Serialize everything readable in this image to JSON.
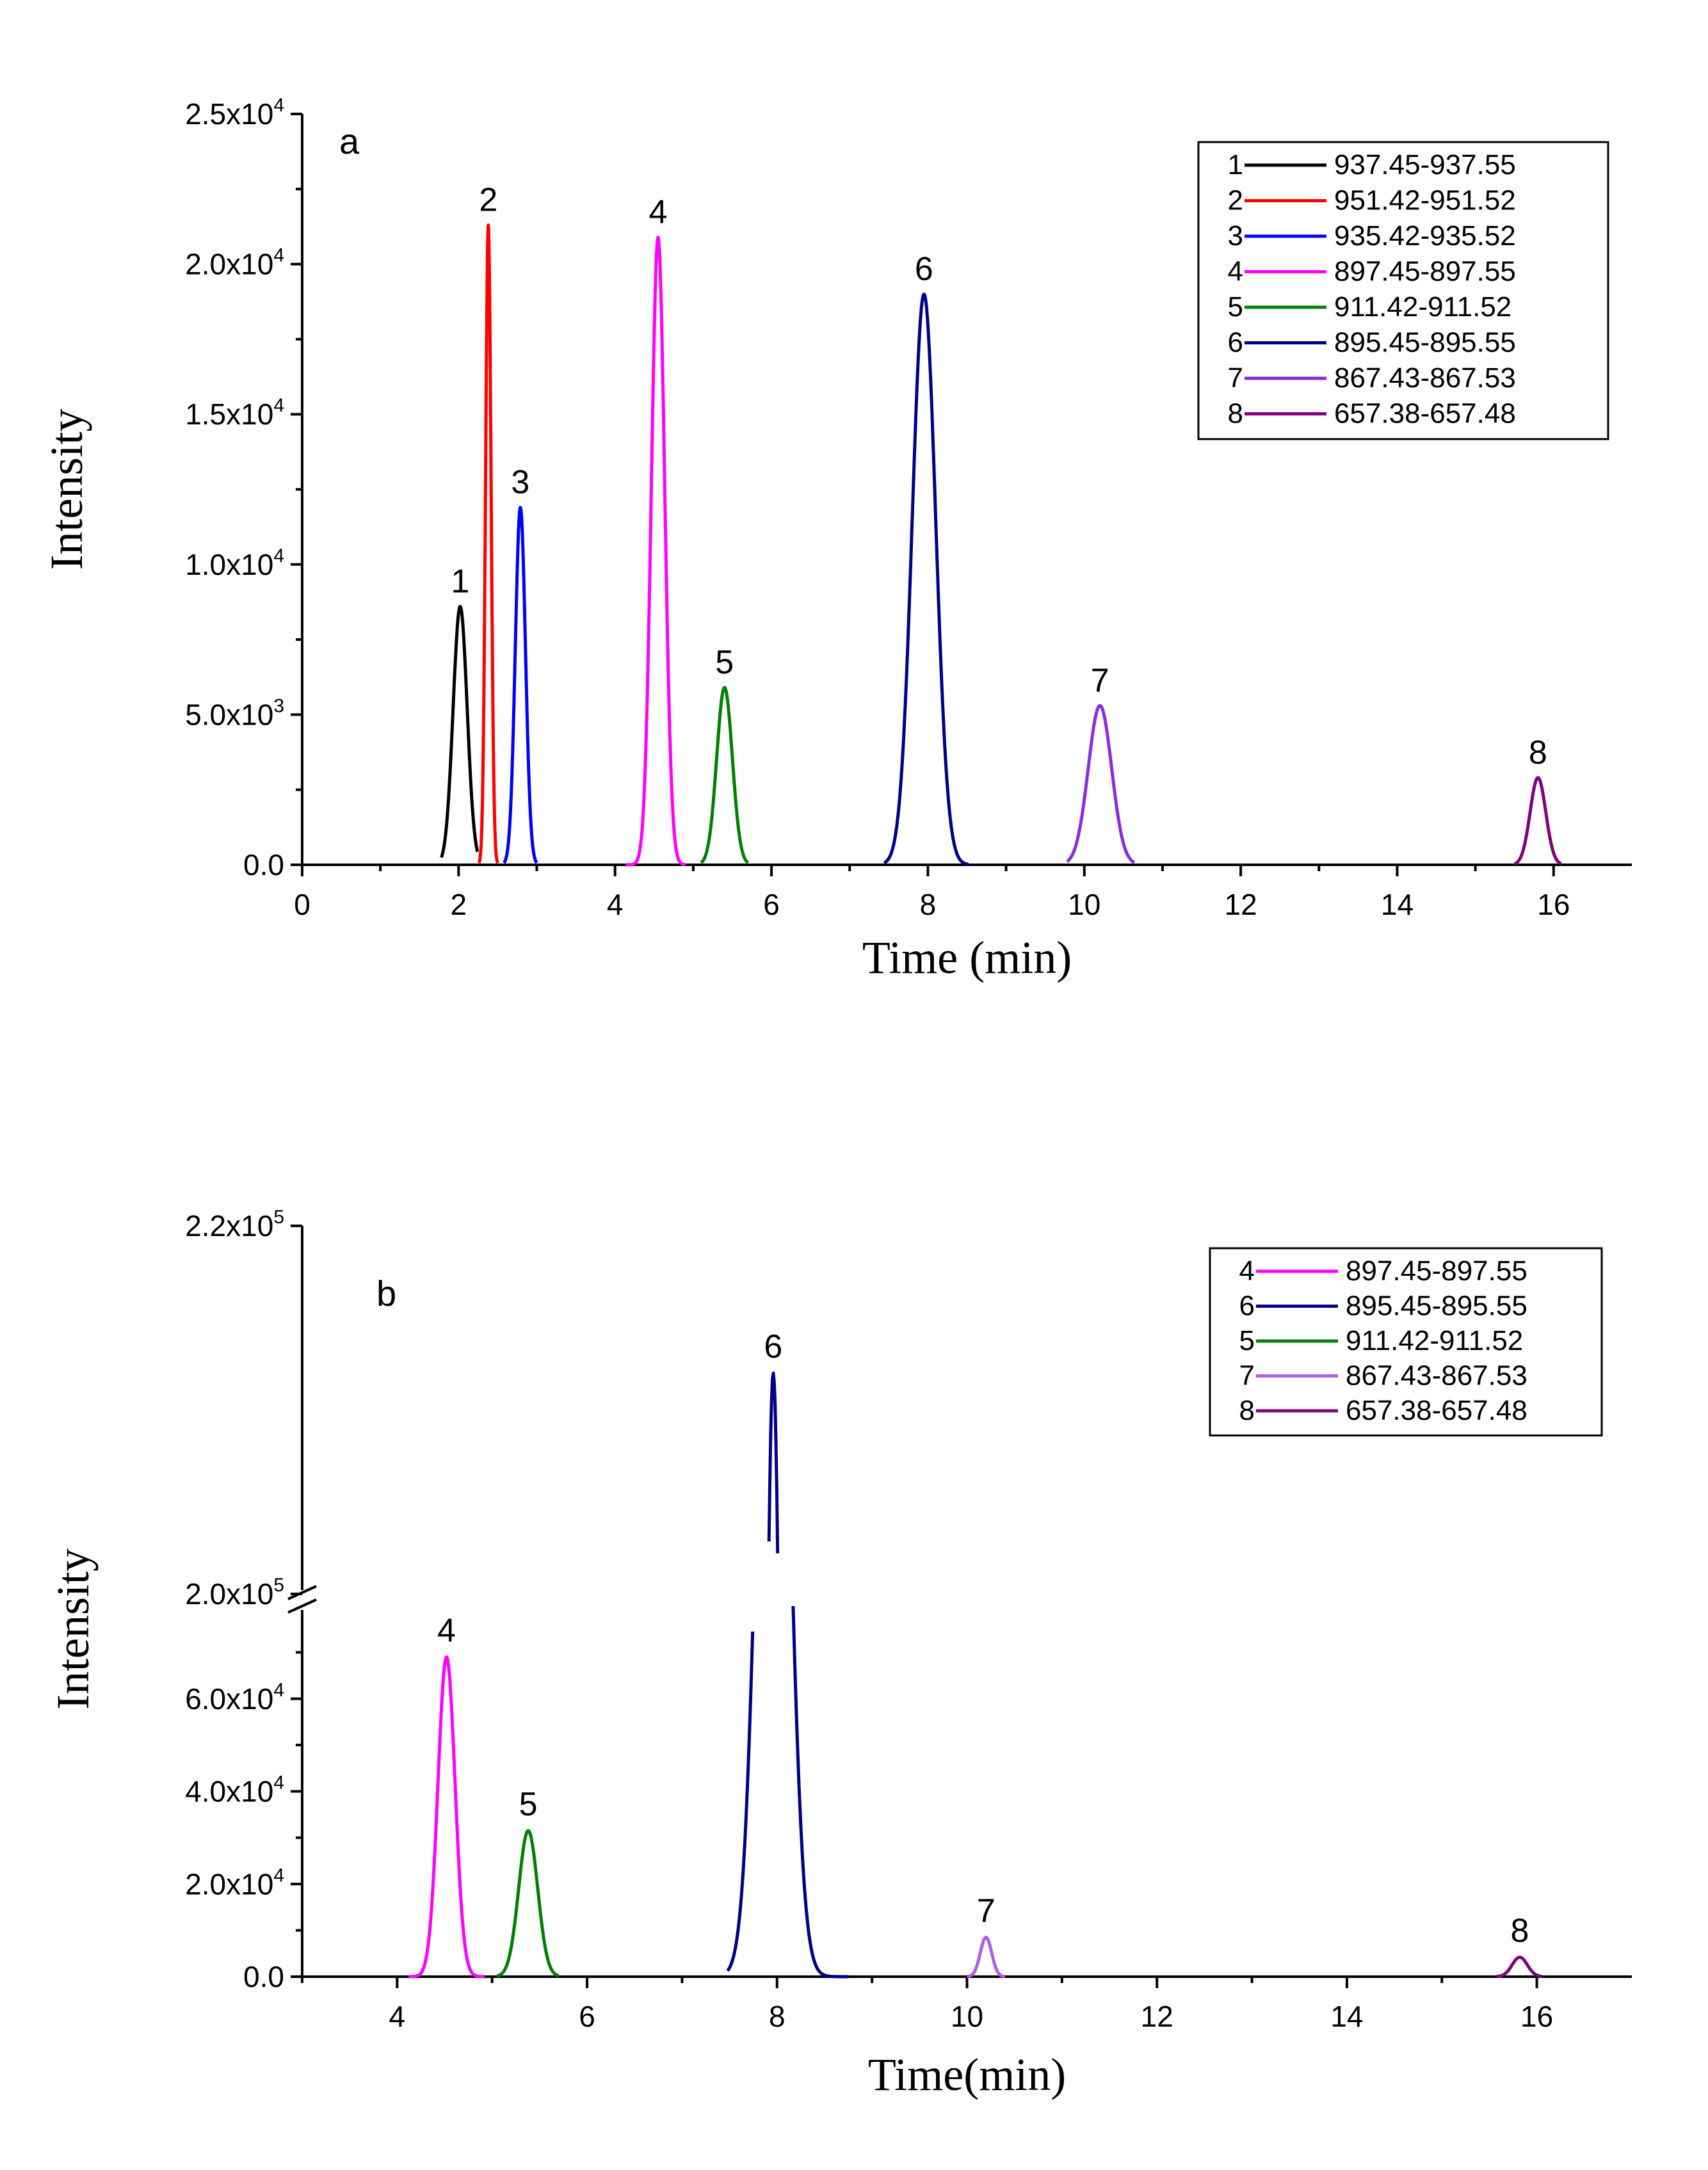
{
  "chart_data": [
    {
      "panel": "a",
      "type": "line",
      "xlabel": "Time (min)",
      "ylabel": "Intensity",
      "xlim": [
        0,
        17
      ],
      "ylim": [
        0,
        25000
      ],
      "x_ticks": [
        0,
        2,
        4,
        6,
        8,
        10,
        12,
        14,
        16
      ],
      "y_ticks": [
        {
          "value": 0,
          "label": "0.0"
        },
        {
          "value": 5000,
          "label": "5.0x10",
          "exp": "3"
        },
        {
          "value": 10000,
          "label": "1.0x10",
          "exp": "4"
        },
        {
          "value": 15000,
          "label": "1.5x10",
          "exp": "4"
        },
        {
          "value": 20000,
          "label": "2.0x10",
          "exp": "4"
        },
        {
          "value": 25000,
          "label": "2.5x10",
          "exp": "4"
        }
      ],
      "series": [
        {
          "id": "1",
          "name": "937.45-937.55",
          "color": "#000000",
          "peak_time": 2.02,
          "peak_height": 8600,
          "width": 0.09,
          "start": 1.78,
          "end": 2.24
        },
        {
          "id": "2",
          "name": "951.42-951.52",
          "color": "#ff0000",
          "peak_time": 2.38,
          "peak_height": 21300,
          "width": 0.035,
          "start": 2.26,
          "end": 2.5
        },
        {
          "id": "3",
          "name": "935.42-935.52",
          "color": "#0000ff",
          "peak_time": 2.79,
          "peak_height": 11900,
          "width": 0.065,
          "start": 2.58,
          "end": 3.0
        },
        {
          "id": "4",
          "name": "897.45-897.55",
          "color": "#ff00ff",
          "peak_time": 4.55,
          "peak_height": 20900,
          "width": 0.085,
          "start": 4.14,
          "end": 4.9
        },
        {
          "id": "5",
          "name": "911.42-911.52",
          "color": "#008000",
          "peak_time": 5.4,
          "peak_height": 5900,
          "width": 0.1,
          "start": 5.1,
          "end": 5.7
        },
        {
          "id": "6",
          "name": "895.45-895.55",
          "color": "#00008b",
          "peak_time": 7.95,
          "peak_height": 19000,
          "width": 0.15,
          "start": 7.44,
          "end": 8.52
        },
        {
          "id": "7",
          "name": "867.43-867.53",
          "color": "#8a2be2",
          "peak_time": 10.2,
          "peak_height": 5300,
          "width": 0.15,
          "start": 9.78,
          "end": 10.64
        },
        {
          "id": "8",
          "name": "657.38-657.48",
          "color": "#800080",
          "peak_time": 15.8,
          "peak_height": 2900,
          "width": 0.1,
          "start": 15.5,
          "end": 16.1
        }
      ],
      "legend_order": [
        "1",
        "2",
        "3",
        "4",
        "5",
        "6",
        "7",
        "8"
      ],
      "legend_position": "top-right"
    },
    {
      "panel": "b",
      "type": "line",
      "xlabel": "Time(min)",
      "ylabel": "Intensity",
      "xlim": [
        3,
        17
      ],
      "y_break": {
        "lower": [
          0,
          80000
        ],
        "upper": [
          200000,
          220000
        ]
      },
      "x_ticks": [
        4,
        6,
        8,
        10,
        12,
        14,
        16
      ],
      "y_ticks": [
        {
          "value": 0,
          "label": "0.0"
        },
        {
          "value": 20000,
          "label": "2.0x10",
          "exp": "4"
        },
        {
          "value": 40000,
          "label": "4.0x10",
          "exp": "4"
        },
        {
          "value": 60000,
          "label": "6.0x10",
          "exp": "4"
        },
        {
          "value": 200000,
          "label": "2.0x10",
          "exp": "5"
        },
        {
          "value": 220000,
          "label": "2.2x10",
          "exp": "5"
        }
      ],
      "series": [
        {
          "id": "4",
          "name": "897.45-897.55",
          "color": "#ff00ff",
          "peak_time": 4.52,
          "peak_height": 69000,
          "width": 0.09,
          "start": 4.12,
          "end": 4.92
        },
        {
          "id": "6",
          "name": "895.45-895.55",
          "color": "#00008b",
          "peak_time": 7.96,
          "peak_height": 212000,
          "width": 0.15,
          "start": 7.48,
          "end": 8.75
        },
        {
          "id": "5",
          "name": "911.42-911.52",
          "color": "#008000",
          "peak_time": 5.38,
          "peak_height": 31500,
          "width": 0.1,
          "start": 5.05,
          "end": 5.7
        },
        {
          "id": "7",
          "name": "867.43-867.53",
          "color": "#b05cf0",
          "peak_time": 10.2,
          "peak_height": 8500,
          "width": 0.06,
          "start": 10.0,
          "end": 10.4
        },
        {
          "id": "8",
          "name": "657.38-657.48",
          "color": "#800080",
          "peak_time": 15.82,
          "peak_height": 4200,
          "width": 0.08,
          "start": 15.58,
          "end": 16.05
        }
      ],
      "legend_order": [
        "4",
        "6",
        "5",
        "7",
        "8"
      ],
      "legend_position": "top-right"
    }
  ]
}
